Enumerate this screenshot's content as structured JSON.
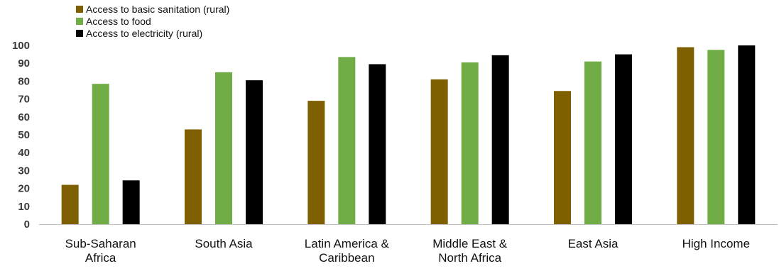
{
  "chart_data": {
    "type": "bar",
    "categories": [
      [
        "Sub-Saharan",
        "Africa"
      ],
      [
        "South Asia"
      ],
      [
        "Latin America &",
        "Caribbean"
      ],
      [
        "Middle East &",
        "North Africa"
      ],
      [
        "East Asia"
      ],
      [
        "High Income"
      ]
    ],
    "series": [
      {
        "name": "Access to basic sanitation (rural)",
        "color": "#7f6000",
        "values": [
          22,
          53,
          69,
          81,
          74.5,
          99
        ]
      },
      {
        "name": "Access to food",
        "color": "#70ad47",
        "values": [
          78.5,
          85,
          93.5,
          90.5,
          91,
          97.5
        ]
      },
      {
        "name": "Access to electricity (rural)",
        "color": "#000000",
        "values": [
          24.5,
          80.5,
          89.5,
          94.5,
          95,
          100
        ]
      }
    ],
    "ylim": [
      0,
      100
    ],
    "yticks": [
      0,
      10,
      20,
      30,
      40,
      50,
      60,
      70,
      80,
      90,
      100
    ],
    "grid": false,
    "legend": "top-left"
  }
}
